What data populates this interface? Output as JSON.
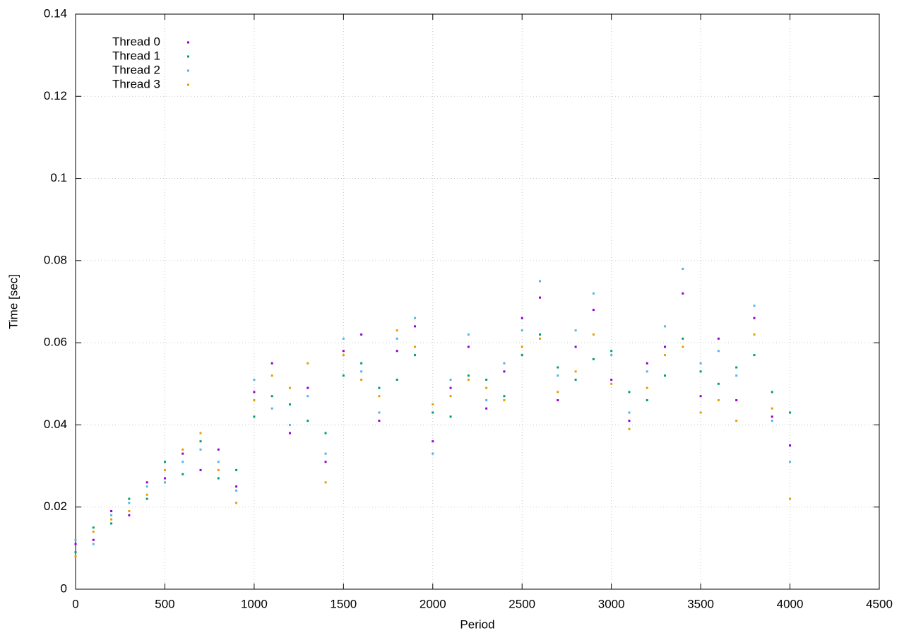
{
  "chart_data": {
    "type": "scatter",
    "xlabel": "Period",
    "ylabel": "Time [sec]",
    "xlim": [
      0,
      4500
    ],
    "xticks": [
      0,
      500,
      1000,
      1500,
      2000,
      2500,
      3000,
      3500,
      4000,
      4500
    ],
    "ylim": [
      0,
      0.14
    ],
    "yticks": [
      0,
      0.02,
      0.04,
      0.06,
      0.08,
      0.1,
      0.12,
      0.14
    ],
    "grid": true,
    "legend": "top-left",
    "x": [
      0,
      100,
      200,
      300,
      400,
      500,
      600,
      700,
      800,
      900,
      1000,
      1100,
      1200,
      1300,
      1400,
      1500,
      1600,
      1700,
      1800,
      1900,
      2000,
      2100,
      2200,
      2300,
      2400,
      2500,
      2600,
      2700,
      2800,
      2900,
      3000,
      3100,
      3200,
      3300,
      3400,
      3500,
      3600,
      3700,
      3800,
      3900,
      4000
    ],
    "series": [
      {
        "name": "Thread 0",
        "color": "#9400d3",
        "values": [
          0.011,
          0.012,
          0.019,
          0.018,
          0.026,
          0.027,
          0.033,
          0.029,
          0.034,
          0.025,
          0.048,
          0.055,
          0.038,
          0.049,
          0.031,
          0.058,
          0.062,
          0.041,
          0.058,
          0.064,
          0.036,
          0.049,
          0.059,
          0.044,
          0.053,
          0.066,
          0.071,
          0.046,
          0.059,
          0.068,
          0.051,
          0.041,
          0.055,
          0.059,
          0.072,
          0.047,
          0.061,
          0.046,
          0.066,
          0.042,
          0.035
        ]
      },
      {
        "name": "Thread 1",
        "color": "#009e73",
        "values": [
          0.009,
          0.015,
          0.016,
          0.022,
          0.022,
          0.031,
          0.028,
          0.036,
          0.027,
          0.029,
          0.042,
          0.047,
          0.045,
          0.041,
          0.038,
          0.052,
          0.055,
          0.049,
          0.051,
          0.057,
          0.043,
          0.042,
          0.052,
          0.051,
          0.047,
          0.057,
          0.062,
          0.054,
          0.051,
          0.056,
          0.058,
          0.048,
          0.046,
          0.052,
          0.061,
          0.053,
          0.05,
          0.054,
          0.057,
          0.048,
          0.043
        ]
      },
      {
        "name": "Thread 2",
        "color": "#56b4e9",
        "values": [
          0.012,
          0.011,
          0.018,
          0.021,
          0.025,
          0.026,
          0.031,
          0.034,
          0.031,
          0.024,
          0.051,
          0.044,
          0.04,
          0.047,
          0.033,
          0.061,
          0.053,
          0.043,
          0.061,
          0.066,
          0.033,
          0.051,
          0.062,
          0.046,
          0.055,
          0.063,
          0.075,
          0.052,
          0.063,
          0.072,
          0.057,
          0.043,
          0.053,
          0.064,
          0.078,
          0.055,
          0.058,
          0.052,
          0.069,
          0.041,
          0.031
        ]
      },
      {
        "name": "Thread 3",
        "color": "#e69f00",
        "values": [
          0.008,
          0.014,
          0.017,
          0.019,
          0.023,
          0.029,
          0.034,
          0.038,
          0.029,
          0.021,
          0.046,
          0.052,
          0.049,
          0.055,
          0.026,
          0.057,
          0.051,
          0.047,
          0.063,
          0.059,
          0.045,
          0.047,
          0.051,
          0.049,
          0.046,
          0.059,
          0.061,
          0.048,
          0.053,
          0.062,
          0.05,
          0.039,
          0.049,
          0.057,
          0.059,
          0.043,
          0.046,
          0.041,
          0.062,
          0.044,
          0.022
        ]
      }
    ]
  }
}
